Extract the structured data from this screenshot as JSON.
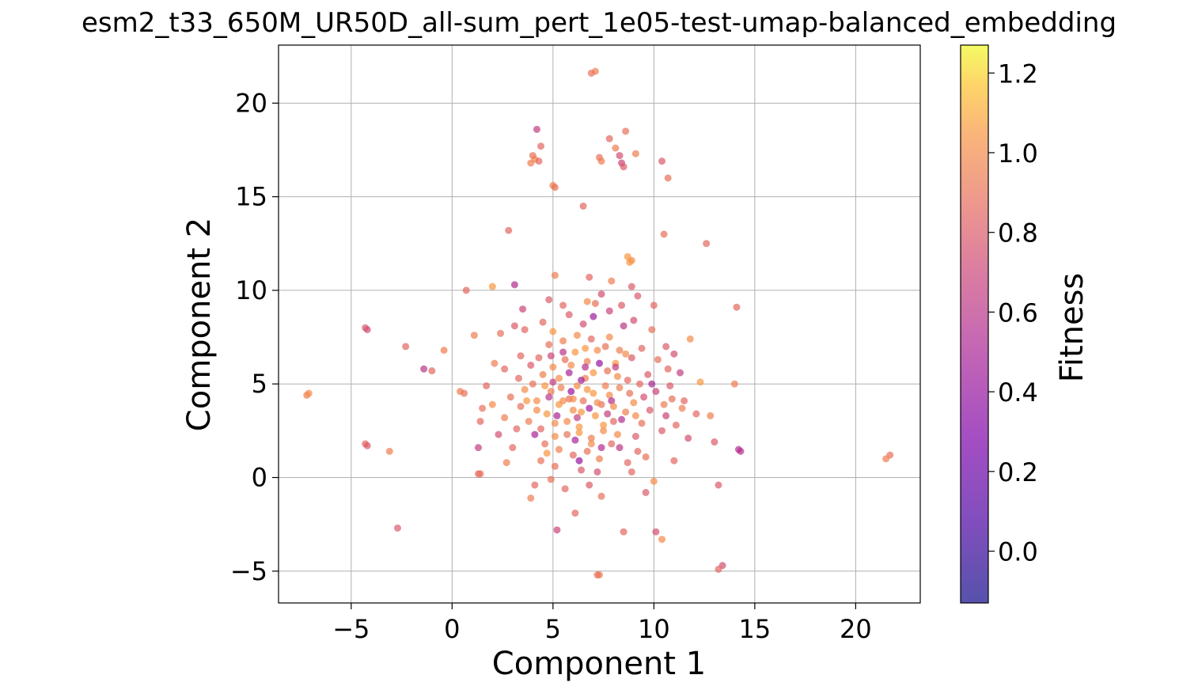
{
  "chart_data": {
    "type": "scatter",
    "title": "esm2_t33_650M_UR50D_all-sum_pert_1e05-test-umap-balanced_embedding",
    "xlabel": "Component 1",
    "ylabel": "Component 2",
    "xlim": [
      -8.6,
      23.2
    ],
    "ylim": [
      -6.7,
      23.1
    ],
    "xticks": [
      -5,
      0,
      5,
      10,
      15,
      20
    ],
    "yticks": [
      -5,
      0,
      5,
      10,
      15,
      20
    ],
    "grid": true,
    "colormap": "plasma",
    "point_alpha": 0.7,
    "colorbar": {
      "label": "Fitness",
      "range": [
        -0.13,
        1.27
      ],
      "ticks": [
        "0.0",
        "0.2",
        "0.4",
        "0.6",
        "0.8",
        "1.0",
        "1.2"
      ]
    },
    "points": [
      [
        7.1,
        21.7,
        0.95
      ],
      [
        6.9,
        21.6,
        0.9
      ],
      [
        4.2,
        18.6,
        0.65
      ],
      [
        4.4,
        17.7,
        0.85
      ],
      [
        4.1,
        17.0,
        1.0
      ],
      [
        3.9,
        16.8,
        0.95
      ],
      [
        4.0,
        17.2,
        0.9
      ],
      [
        4.3,
        16.9,
        0.85
      ],
      [
        7.3,
        17.1,
        0.9
      ],
      [
        7.4,
        16.9,
        0.95
      ],
      [
        8.3,
        17.2,
        0.75
      ],
      [
        8.4,
        16.8,
        0.7
      ],
      [
        8.5,
        16.6,
        0.8
      ],
      [
        8.1,
        17.6,
        0.95
      ],
      [
        8.6,
        18.5,
        0.9
      ],
      [
        7.8,
        18.1,
        0.85
      ],
      [
        9.1,
        17.3,
        0.95
      ],
      [
        10.4,
        16.9,
        0.8
      ],
      [
        10.7,
        16.0,
        0.9
      ],
      [
        5.0,
        15.6,
        0.95
      ],
      [
        5.1,
        15.5,
        0.9
      ],
      [
        6.5,
        14.5,
        0.85
      ],
      [
        2.8,
        13.2,
        0.85
      ],
      [
        10.5,
        13.0,
        0.9
      ],
      [
        12.6,
        12.5,
        0.85
      ],
      [
        8.7,
        11.8,
        1.05
      ],
      [
        8.9,
        11.6,
        1.0
      ],
      [
        8.8,
        11.5,
        1.05
      ],
      [
        5.1,
        10.8,
        0.95
      ],
      [
        3.1,
        10.3,
        0.55
      ],
      [
        2.0,
        10.2,
        1.05
      ],
      [
        0.7,
        10.0,
        0.85
      ],
      [
        -4.3,
        8.0,
        0.8
      ],
      [
        -4.2,
        7.9,
        0.75
      ],
      [
        -2.3,
        7.0,
        0.85
      ],
      [
        -1.4,
        5.8,
        0.6
      ],
      [
        -1.0,
        5.7,
        0.85
      ],
      [
        -0.4,
        6.8,
        0.95
      ],
      [
        0.4,
        4.6,
        0.95
      ],
      [
        0.6,
        4.5,
        0.9
      ],
      [
        -7.2,
        4.4,
        0.95
      ],
      [
        -7.1,
        4.5,
        1.0
      ],
      [
        -4.3,
        1.8,
        0.85
      ],
      [
        -4.2,
        1.7,
        0.8
      ],
      [
        -3.1,
        1.4,
        0.95
      ],
      [
        -2.7,
        -2.7,
        0.8
      ],
      [
        1.3,
        0.2,
        0.85
      ],
      [
        1.4,
        0.2,
        0.9
      ],
      [
        21.7,
        1.2,
        0.9
      ],
      [
        21.5,
        1.0,
        0.95
      ],
      [
        14.1,
        9.1,
        0.85
      ],
      [
        14.3,
        1.4,
        0.6
      ],
      [
        14.2,
        1.5,
        0.55
      ],
      [
        13.2,
        -0.4,
        0.8
      ],
      [
        13.4,
        -4.7,
        0.75
      ],
      [
        13.2,
        -4.9,
        0.85
      ],
      [
        7.3,
        -5.2,
        0.95
      ],
      [
        7.2,
        -5.2,
        0.9
      ],
      [
        8.5,
        -2.9,
        0.85
      ],
      [
        10.1,
        -2.9,
        0.75
      ],
      [
        10.4,
        -3.3,
        1.0
      ],
      [
        5.2,
        -2.8,
        0.7
      ],
      [
        6.1,
        -1.9,
        0.85
      ],
      [
        7.4,
        -1.0,
        0.9
      ],
      [
        9.6,
        -0.8,
        0.8
      ],
      [
        3.9,
        -1.1,
        0.95
      ],
      [
        4.1,
        -0.4,
        0.85
      ],
      [
        10.0,
        -0.2,
        1.0
      ],
      [
        11.0,
        0.9,
        0.85
      ],
      [
        12.3,
        5.1,
        1.05
      ],
      [
        11.8,
        7.4,
        1.0
      ],
      [
        14.0,
        5.0,
        0.95
      ],
      [
        12.1,
        3.4,
        0.85
      ],
      [
        12.8,
        3.3,
        0.95
      ],
      [
        13.0,
        1.9,
        0.8
      ],
      [
        11.7,
        2.1,
        0.75
      ],
      [
        6.8,
        10.7,
        0.85
      ],
      [
        7.9,
        10.5,
        0.95
      ],
      [
        8.9,
        10.2,
        0.8
      ],
      [
        7.4,
        9.8,
        0.75
      ],
      [
        6.7,
        9.4,
        1.0
      ],
      [
        4.8,
        9.5,
        0.8
      ],
      [
        5.5,
        9.2,
        0.85
      ],
      [
        3.5,
        9.0,
        0.7
      ],
      [
        3.6,
        7.9,
        0.85
      ],
      [
        2.4,
        7.7,
        0.9
      ],
      [
        1.1,
        7.6,
        0.95
      ],
      [
        9.2,
        9.7,
        0.8
      ],
      [
        10.0,
        9.2,
        0.85
      ],
      [
        9.9,
        7.9,
        0.9
      ],
      [
        10.6,
        7.0,
        0.8
      ],
      [
        11.0,
        6.6,
        0.75
      ],
      [
        11.3,
        5.6,
        0.65
      ],
      [
        10.8,
        4.9,
        0.8
      ],
      [
        10.9,
        4.2,
        0.9
      ],
      [
        11.4,
        3.7,
        0.95
      ],
      [
        11.5,
        4.1,
        0.85
      ],
      [
        10.6,
        3.3,
        0.7
      ],
      [
        10.4,
        2.5,
        0.8
      ],
      [
        1.4,
        3.0,
        0.85
      ],
      [
        1.5,
        3.7,
        0.9
      ],
      [
        2.0,
        3.9,
        1.0
      ],
      [
        1.7,
        4.9,
        0.85
      ],
      [
        2.1,
        6.1,
        0.95
      ],
      [
        1.3,
        1.6,
        0.65
      ],
      [
        2.3,
        2.3,
        0.75
      ],
      [
        3.0,
        1.6,
        0.85
      ],
      [
        2.7,
        0.8,
        0.95
      ],
      [
        9.2,
        1.4,
        0.85
      ],
      [
        8.3,
        1.6,
        0.6
      ],
      [
        9.4,
        2.9,
        0.9
      ],
      [
        3.4,
        3.8,
        0.9
      ],
      [
        4.2,
        4.1,
        1.0
      ],
      [
        4.9,
        4.6,
        0.95
      ],
      [
        5.3,
        3.9,
        1.05
      ],
      [
        5.8,
        4.2,
        0.9
      ],
      [
        6.2,
        4.9,
        1.0
      ],
      [
        6.6,
        5.3,
        0.95
      ],
      [
        7.0,
        4.5,
        1.05
      ],
      [
        7.4,
        3.9,
        0.9
      ],
      [
        7.8,
        4.4,
        1.0
      ],
      [
        8.3,
        4.8,
        0.95
      ],
      [
        8.7,
        5.2,
        0.85
      ],
      [
        4.5,
        5.5,
        0.95
      ],
      [
        5.0,
        5.9,
        1.0
      ],
      [
        5.6,
        6.3,
        0.9
      ],
      [
        6.1,
        6.7,
        1.05
      ],
      [
        6.7,
        6.2,
        0.95
      ],
      [
        7.2,
        6.8,
        1.0
      ],
      [
        7.7,
        5.7,
        0.9
      ],
      [
        8.1,
        6.1,
        1.05
      ],
      [
        3.8,
        3.0,
        0.95
      ],
      [
        4.4,
        2.6,
        0.85
      ],
      [
        5.1,
        2.9,
        1.0
      ],
      [
        5.7,
        2.3,
        0.9
      ],
      [
        6.3,
        2.7,
        1.05
      ],
      [
        6.9,
        2.1,
        0.95
      ],
      [
        7.5,
        2.5,
        1.0
      ],
      [
        8.0,
        3.0,
        0.85
      ],
      [
        8.6,
        3.5,
        0.95
      ],
      [
        9.0,
        4.0,
        1.0
      ],
      [
        4.0,
        5.0,
        0.9
      ],
      [
        3.6,
        4.7,
        1.0
      ],
      [
        3.3,
        5.3,
        0.85
      ],
      [
        4.7,
        3.4,
        1.05
      ],
      [
        5.4,
        4.8,
        0.95
      ],
      [
        6.0,
        3.6,
        1.0
      ],
      [
        6.5,
        4.1,
        0.9
      ],
      [
        7.1,
        3.3,
        1.05
      ],
      [
        7.6,
        4.9,
        0.95
      ],
      [
        8.2,
        5.4,
        1.0
      ],
      [
        8.8,
        4.5,
        0.9
      ],
      [
        9.3,
        5.0,
        0.85
      ],
      [
        9.7,
        5.5,
        0.8
      ],
      [
        9.5,
        4.3,
        0.75
      ],
      [
        9.8,
        3.6,
        0.8
      ],
      [
        10.1,
        4.6,
        0.7
      ],
      [
        4.3,
        6.4,
        0.85
      ],
      [
        4.8,
        7.1,
        0.9
      ],
      [
        5.5,
        7.3,
        0.95
      ],
      [
        6.2,
        7.6,
        1.0
      ],
      [
        6.9,
        7.4,
        0.85
      ],
      [
        7.6,
        7.0,
        0.9
      ],
      [
        8.3,
        6.8,
        0.95
      ],
      [
        8.9,
        6.4,
        0.8
      ],
      [
        9.4,
        6.9,
        0.85
      ],
      [
        3.9,
        6.0,
        0.8
      ],
      [
        3.4,
        6.5,
        0.85
      ],
      [
        4.6,
        1.8,
        0.9
      ],
      [
        5.3,
        1.5,
        0.95
      ],
      [
        6.0,
        1.2,
        0.85
      ],
      [
        6.7,
        1.4,
        0.9
      ],
      [
        7.3,
        1.0,
        0.95
      ],
      [
        7.9,
        1.8,
        0.85
      ],
      [
        5.1,
        0.6,
        0.9
      ],
      [
        6.4,
        0.4,
        0.8
      ],
      [
        7.2,
        0.3,
        0.75
      ],
      [
        4.4,
        0.9,
        0.9
      ],
      [
        8.7,
        0.8,
        0.85
      ],
      [
        9.1,
        2.2,
        0.8
      ],
      [
        5.8,
        5.6,
        0.5
      ],
      [
        6.4,
        5.2,
        0.45
      ],
      [
        7.3,
        6.1,
        0.4
      ],
      [
        5.2,
        3.3,
        0.5
      ],
      [
        6.8,
        3.7,
        0.45
      ],
      [
        7.9,
        4.1,
        0.55
      ],
      [
        4.8,
        4.3,
        0.6
      ],
      [
        6.1,
        2.0,
        0.5
      ],
      [
        8.4,
        3.1,
        0.55
      ],
      [
        5.5,
        6.7,
        0.6
      ],
      [
        7.0,
        8.6,
        0.45
      ],
      [
        8.5,
        8.1,
        0.6
      ],
      [
        9.9,
        5.0,
        0.5
      ],
      [
        6.3,
        0.9,
        0.4
      ],
      [
        7.4,
        1.6,
        0.55
      ],
      [
        4.1,
        2.3,
        0.5
      ],
      [
        5.9,
        4.6,
        0.4
      ],
      [
        6.6,
        5.9,
        0.55
      ],
      [
        5.0,
        5.1,
        0.65
      ],
      [
        6.2,
        3.2,
        0.65
      ],
      [
        7.7,
        3.4,
        0.65
      ],
      [
        8.1,
        5.9,
        0.65
      ],
      [
        4.9,
        6.5,
        0.7
      ],
      [
        6.5,
        8.2,
        0.75
      ],
      [
        7.8,
        8.9,
        0.7
      ],
      [
        5.8,
        8.7,
        0.8
      ],
      [
        9.0,
        8.4,
        0.75
      ],
      [
        8.4,
        9.2,
        0.8
      ],
      [
        7.1,
        9.3,
        0.9
      ],
      [
        4.5,
        8.3,
        0.85
      ],
      [
        3.1,
        8.1,
        0.8
      ],
      [
        2.6,
        5.8,
        0.85
      ],
      [
        2.9,
        4.3,
        0.9
      ],
      [
        3.2,
        2.6,
        0.85
      ],
      [
        2.6,
        3.2,
        0.95
      ],
      [
        10.7,
        5.8,
        0.85
      ],
      [
        10.2,
        6.3,
        0.9
      ],
      [
        10.5,
        3.9,
        0.95
      ],
      [
        11.1,
        2.8,
        0.85
      ],
      [
        9.6,
        1.1,
        0.9
      ],
      [
        8.9,
        0.3,
        0.85
      ],
      [
        6.8,
        -0.4,
        0.8
      ],
      [
        5.6,
        -0.6,
        0.85
      ],
      [
        4.9,
        -0.1,
        0.9
      ],
      [
        5.3,
        5.3,
        1.0
      ],
      [
        6.7,
        4.7,
        1.05
      ],
      [
        5.7,
        3.0,
        1.0
      ],
      [
        7.0,
        5.6,
        1.05
      ],
      [
        6.0,
        4.2,
        1.0
      ],
      [
        6.4,
        3.5,
        1.05
      ],
      [
        5.5,
        4.1,
        1.0
      ],
      [
        7.2,
        4.0,
        1.0
      ],
      [
        6.6,
        6.9,
        1.05
      ],
      [
        5.9,
        6.0,
        1.0
      ],
      [
        4.6,
        4.9,
        1.05
      ],
      [
        8.0,
        3.8,
        1.0
      ],
      [
        7.5,
        2.8,
        1.05
      ],
      [
        5.1,
        2.2,
        1.0
      ],
      [
        6.3,
        2.4,
        1.05
      ],
      [
        4.2,
        3.6,
        1.0
      ],
      [
        8.6,
        6.6,
        1.0
      ],
      [
        3.7,
        4.1,
        1.05
      ],
      [
        9.1,
        3.3,
        1.0
      ],
      [
        7.8,
        7.5,
        1.0
      ],
      [
        5.0,
        7.8,
        1.05
      ],
      [
        6.9,
        1.8,
        1.0
      ],
      [
        4.7,
        1.3,
        1.05
      ],
      [
        8.2,
        2.3,
        1.0
      ]
    ]
  }
}
